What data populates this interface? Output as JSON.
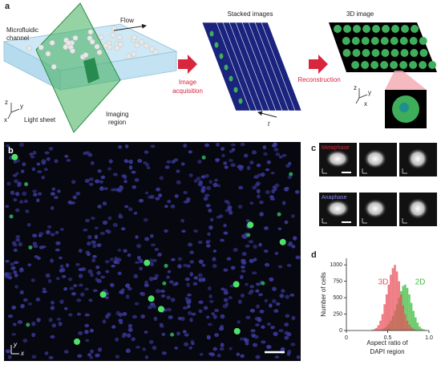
{
  "panel_a": {
    "label": "a",
    "channel": [
      "Microfluidic",
      "channel"
    ],
    "flow": "Flow",
    "light_sheet": "Light sheet",
    "imaging_region": [
      "Imaging",
      "region"
    ],
    "stacked_images": "Stacked images",
    "time_axis": "t",
    "image_acquisition": [
      "Image",
      "acquisition"
    ],
    "reconstruction": "Reconstruction",
    "image_3d": "3D image",
    "axes_left": [
      "z",
      "y",
      "x"
    ],
    "axes_right": [
      "z",
      "y",
      "x"
    ]
  },
  "panel_b": {
    "label": "b",
    "axes": [
      "y",
      "x"
    ]
  },
  "panel_c": {
    "label": "c",
    "rows": [
      "Metaphase",
      "Anaphase"
    ]
  },
  "chart_data": {
    "type": "histogram",
    "panel_label": "d",
    "ylabel": "Number of cells",
    "xlabel": [
      "Aspect ratio of",
      "DAPI region"
    ],
    "bins": [
      0.3,
      0.325,
      0.35,
      0.375,
      0.4,
      0.425,
      0.45,
      0.475,
      0.5,
      0.525,
      0.55,
      0.575,
      0.6,
      0.625,
      0.65,
      0.675,
      0.7,
      0.725,
      0.75,
      0.775,
      0.8,
      0.825,
      0.85,
      0.875,
      0.9,
      0.925,
      0.95,
      0.975,
      1.0
    ],
    "series": [
      {
        "name": "3D",
        "color": "#e8505b",
        "values": [
          10,
          20,
          40,
          80,
          150,
          250,
          400,
          550,
          700,
          850,
          950,
          1000,
          900,
          750,
          550,
          380,
          250,
          150,
          90,
          50,
          25,
          10,
          5,
          0,
          0,
          0,
          0,
          0
        ]
      },
      {
        "name": "2D",
        "color": "#3dbb3d",
        "values": [
          0,
          0,
          0,
          5,
          10,
          20,
          40,
          60,
          100,
          150,
          220,
          300,
          400,
          500,
          600,
          680,
          700,
          650,
          550,
          420,
          300,
          200,
          120,
          60,
          30,
          15,
          5,
          0
        ]
      }
    ],
    "xlim": [
      0,
      1
    ],
    "ylim": [
      0,
      1100
    ],
    "xticks": [
      0,
      0.5,
      {
        "value": 1,
        "label": "1.0"
      }
    ],
    "yticks": [
      0,
      250,
      500,
      750,
      1000
    ]
  }
}
